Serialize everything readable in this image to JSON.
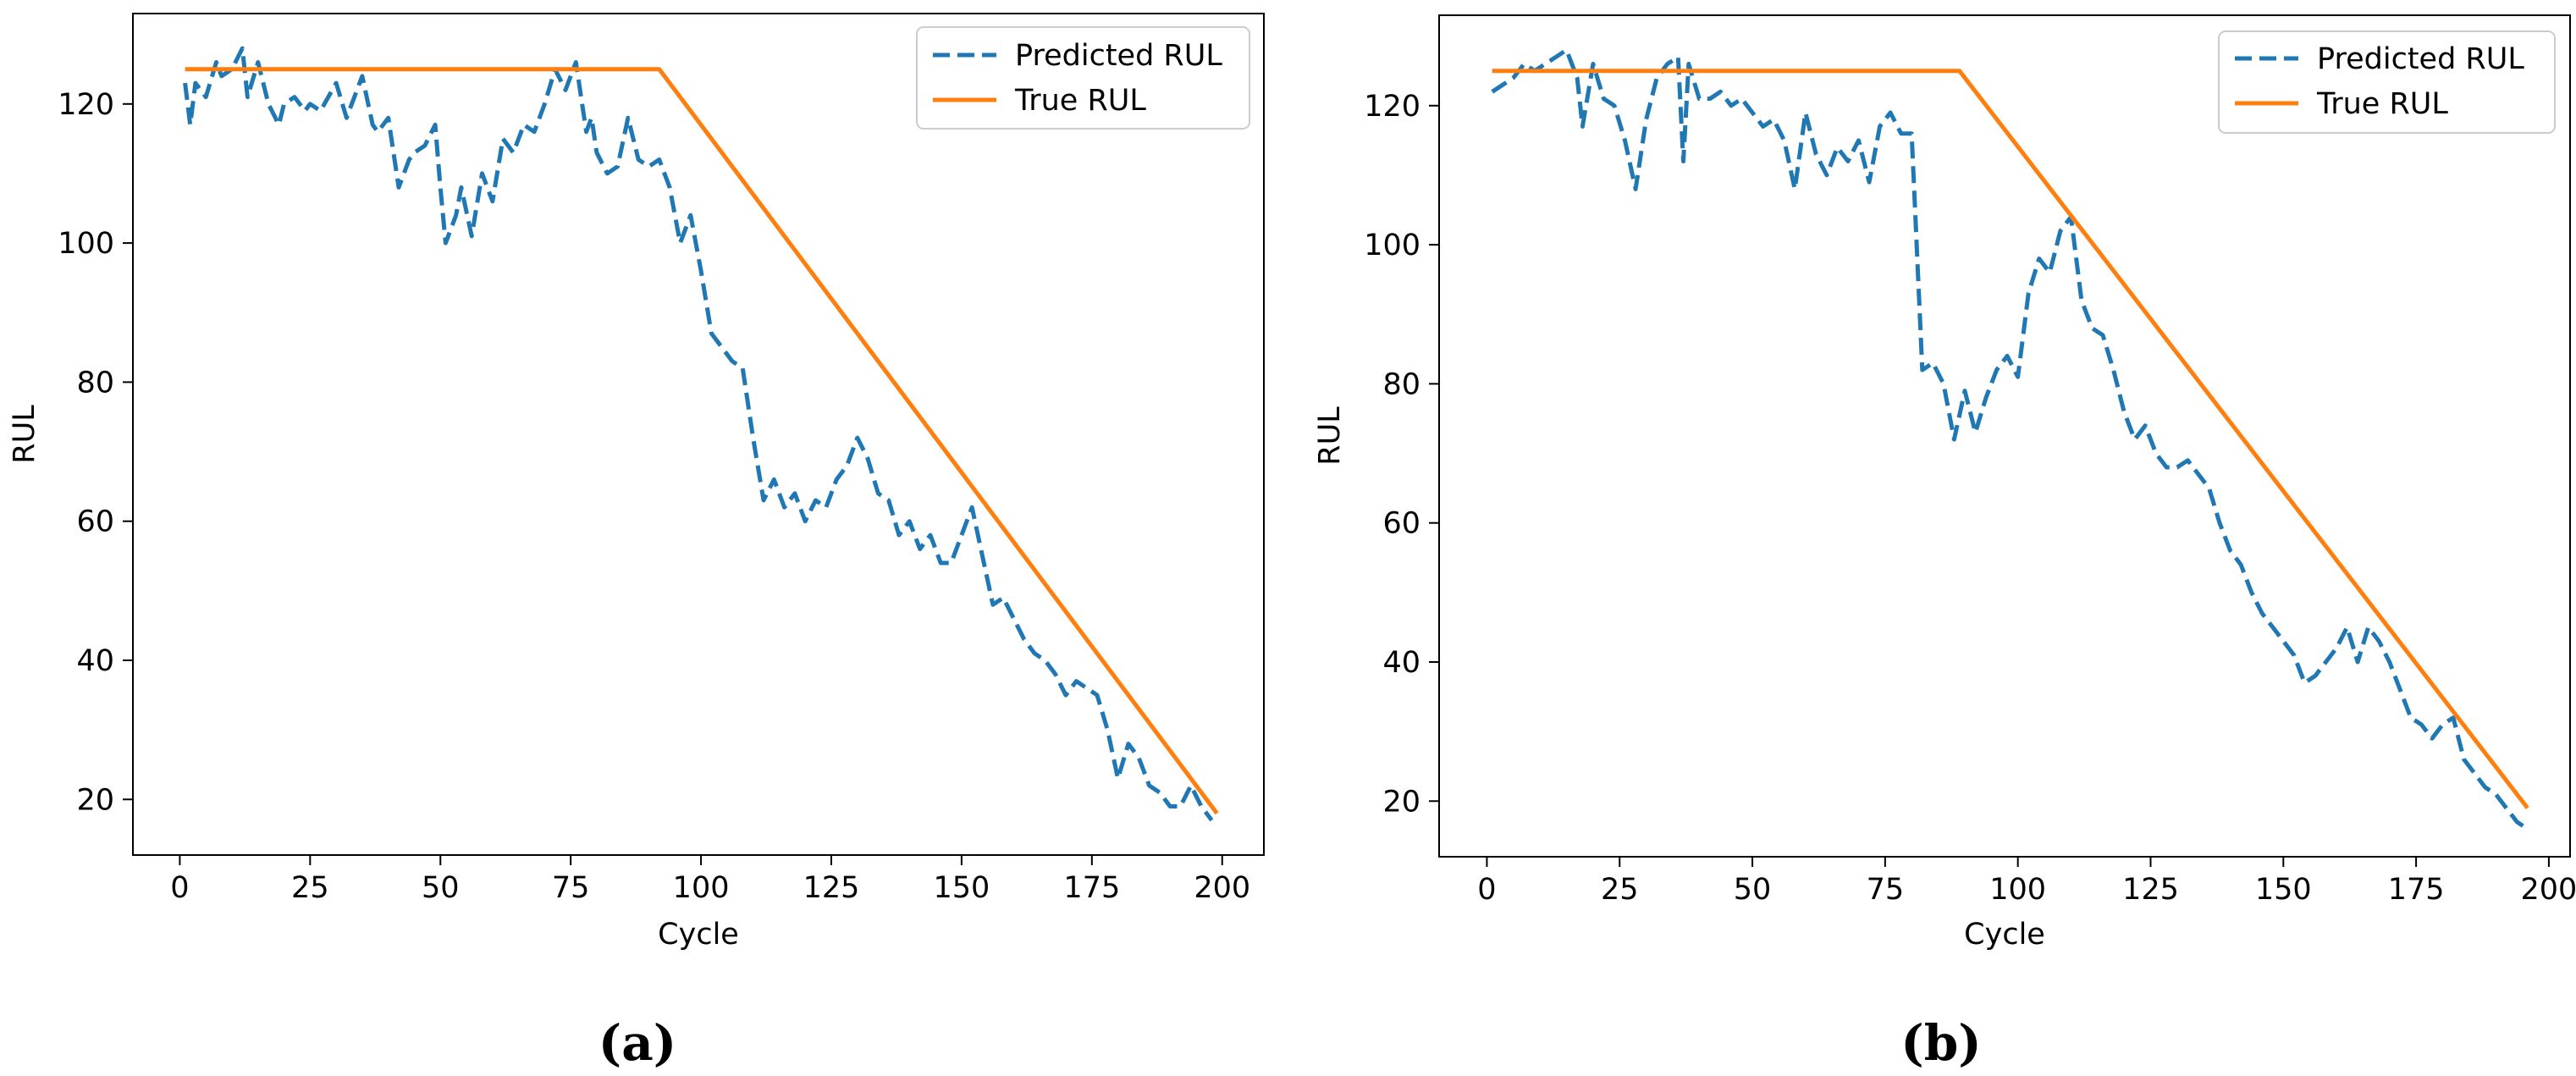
{
  "chart_data": [
    {
      "type": "line",
      "caption": "(a)",
      "xlabel": "Cycle",
      "ylabel": "RUL",
      "xlim": [
        -9,
        208
      ],
      "ylim": [
        12,
        133
      ],
      "xticks": [
        0,
        25,
        50,
        75,
        100,
        125,
        150,
        175,
        200
      ],
      "yticks": [
        20,
        40,
        60,
        80,
        100,
        120
      ],
      "xtick_labels": [
        "0",
        "25",
        "50",
        "75",
        "100",
        "125",
        "150",
        "175",
        "200"
      ],
      "ytick_labels": [
        "20",
        "40",
        "60",
        "80",
        "100",
        "120"
      ],
      "legend": {
        "position": "top-right",
        "entries": [
          "Predicted RUL",
          "True RUL"
        ]
      },
      "series": [
        {
          "name": "Predicted RUL",
          "style": "dashed",
          "color": "#1f77b4",
          "x": [
            1,
            2,
            3,
            5,
            7,
            8,
            10,
            12,
            13,
            15,
            17,
            19,
            20,
            22,
            24,
            25,
            27,
            30,
            32,
            35,
            37,
            38,
            40,
            42,
            44,
            45,
            47,
            49,
            50,
            51,
            53,
            54,
            56,
            58,
            60,
            62,
            64,
            66,
            68,
            70,
            72,
            74,
            76,
            78,
            79,
            80,
            82,
            84,
            86,
            88,
            90,
            92,
            94,
            96,
            98,
            100,
            102,
            104,
            106,
            108,
            110,
            112,
            114,
            116,
            118,
            120,
            122,
            124,
            126,
            128,
            130,
            132,
            134,
            136,
            138,
            140,
            142,
            144,
            146,
            148,
            150,
            152,
            154,
            156,
            158,
            160,
            162,
            164,
            166,
            168,
            170,
            172,
            174,
            176,
            178,
            180,
            182,
            184,
            186,
            188,
            190,
            192,
            194,
            196,
            198
          ],
          "y": [
            123,
            117,
            123,
            121,
            126,
            124,
            125,
            128,
            121,
            126,
            120,
            117,
            120,
            121,
            119,
            120,
            119,
            123,
            118,
            124,
            117,
            116,
            118,
            108,
            112,
            113,
            114,
            117,
            108,
            100,
            104,
            108,
            101,
            110,
            106,
            115,
            113,
            117,
            116,
            120,
            125,
            122,
            126,
            116,
            118,
            113,
            110,
            111,
            118,
            112,
            111,
            112,
            108,
            100,
            104,
            96,
            87,
            85,
            83,
            82,
            72,
            63,
            66,
            62,
            64,
            60,
            63,
            62,
            66,
            68,
            72,
            69,
            64,
            63,
            58,
            60,
            56,
            58,
            54,
            54,
            58,
            62,
            55,
            48,
            49,
            46,
            43,
            41,
            40,
            38,
            35,
            37,
            36,
            35,
            30,
            23,
            28,
            26,
            22,
            21,
            19,
            19,
            22,
            19,
            17
          ]
        },
        {
          "name": "True RUL",
          "style": "solid",
          "color": "#ff7f0e",
          "x": [
            1,
            92,
            199
          ],
          "y": [
            125,
            125,
            18
          ]
        }
      ]
    },
    {
      "type": "line",
      "caption": "(b)",
      "xlabel": "Cycle",
      "ylabel": "RUL",
      "xlim": [
        -9,
        204
      ],
      "ylim": [
        12,
        133
      ],
      "xticks": [
        0,
        25,
        50,
        75,
        100,
        125,
        150,
        175,
        200
      ],
      "yticks": [
        20,
        40,
        60,
        80,
        100,
        120
      ],
      "xtick_labels": [
        "0",
        "25",
        "50",
        "75",
        "100",
        "125",
        "150",
        "175",
        "200"
      ],
      "ytick_labels": [
        "20",
        "40",
        "60",
        "80",
        "100",
        "120"
      ],
      "legend": {
        "position": "top-right",
        "entries": [
          "Predicted RUL",
          "True RUL"
        ]
      },
      "series": [
        {
          "name": "Predicted RUL",
          "style": "dashed",
          "color": "#1f77b4",
          "x": [
            1,
            3,
            5,
            7,
            9,
            11,
            13,
            15,
            17,
            18,
            20,
            22,
            24,
            26,
            28,
            30,
            32,
            34,
            36,
            37,
            38,
            40,
            42,
            44,
            46,
            48,
            50,
            52,
            54,
            56,
            58,
            60,
            62,
            64,
            66,
            68,
            70,
            72,
            74,
            76,
            78,
            80,
            82,
            84,
            86,
            88,
            90,
            92,
            94,
            96,
            98,
            100,
            102,
            104,
            106,
            108,
            110,
            112,
            114,
            116,
            118,
            120,
            122,
            124,
            126,
            128,
            130,
            132,
            134,
            136,
            138,
            140,
            142,
            144,
            146,
            148,
            150,
            152,
            154,
            156,
            158,
            160,
            162,
            164,
            166,
            168,
            170,
            172,
            174,
            176,
            178,
            180,
            182,
            184,
            186,
            188,
            190,
            192,
            194,
            196
          ],
          "y": [
            122,
            123,
            124,
            126,
            125,
            126,
            127,
            128,
            124,
            117,
            126,
            121,
            120,
            115,
            108,
            118,
            124,
            126,
            127,
            112,
            126,
            121,
            121,
            122,
            120,
            121,
            119,
            117,
            118,
            115,
            108,
            119,
            113,
            110,
            114,
            112,
            115,
            109,
            117,
            119,
            116,
            116,
            82,
            83,
            80,
            72,
            79,
            73,
            78,
            82,
            84,
            81,
            93,
            98,
            96,
            102,
            104,
            92,
            88,
            87,
            82,
            76,
            72,
            74,
            70,
            68,
            68,
            69,
            67,
            65,
            60,
            56,
            54,
            50,
            47,
            45,
            43,
            41,
            37,
            38,
            40,
            42,
            45,
            40,
            45,
            43,
            40,
            36,
            32,
            31,
            29,
            31,
            32,
            26,
            24,
            22,
            21,
            19,
            17,
            16
          ],
          "y_note": "read from plot"
        },
        {
          "name": "True RUL",
          "style": "solid",
          "color": "#ff7f0e",
          "x": [
            1,
            89,
            196
          ],
          "y": [
            125,
            125,
            19
          ]
        }
      ]
    }
  ]
}
